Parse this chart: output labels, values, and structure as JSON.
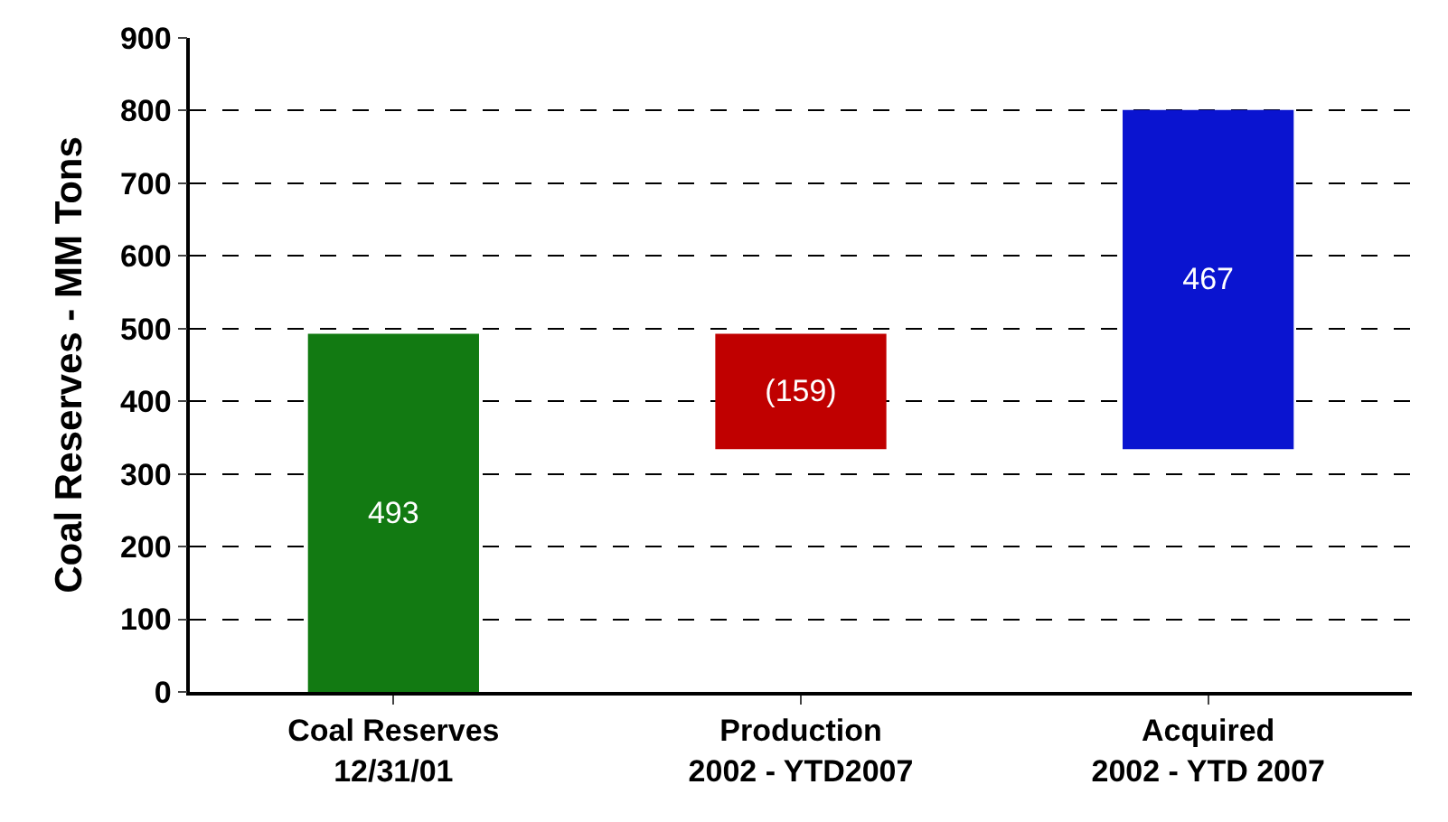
{
  "chart_data": {
    "type": "bar",
    "ylabel": "Coal Reserves - MM Tons",
    "categories": [
      "Coal Reserves\n12/31/01",
      "Production\n2002 - YTD2007",
      "Acquired\n2002 - YTD 2007"
    ],
    "values": [
      493,
      -159,
      467
    ],
    "base": [
      0,
      493,
      334
    ],
    "colors": [
      "#127a12",
      "#c00000",
      "#0a14d0"
    ],
    "value_labels": [
      "493",
      "(159)",
      "467"
    ],
    "ylim": [
      0,
      900
    ],
    "yticks": [
      0,
      100,
      200,
      300,
      400,
      500,
      600,
      700,
      800,
      900
    ],
    "grid": "y",
    "legend": false
  }
}
